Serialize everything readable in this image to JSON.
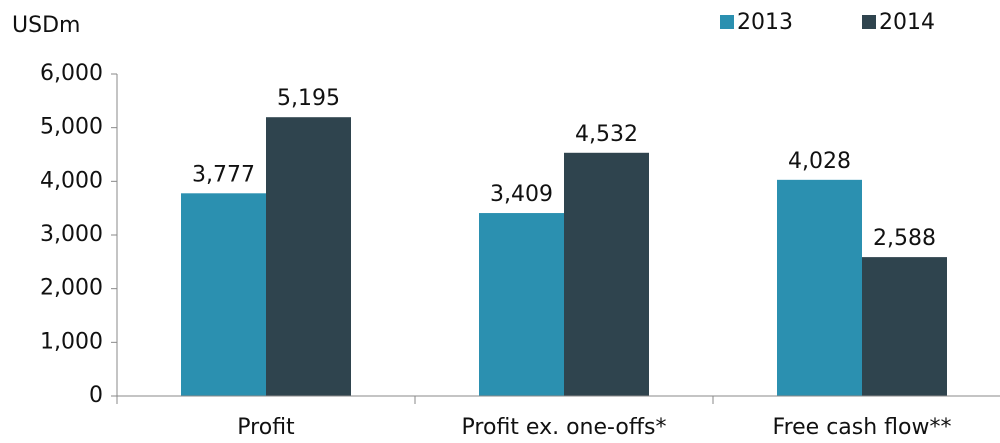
{
  "chart_data": {
    "type": "bar",
    "y_label": "USDm",
    "categories": [
      "Profit",
      "Profit ex. one-offs*",
      "Free cash flow**"
    ],
    "series": [
      {
        "name": "2013",
        "color": "#2b90b0",
        "values": [
          3777,
          3409,
          4028
        ],
        "value_labels": [
          "3,777",
          "3,409",
          "4,028"
        ]
      },
      {
        "name": "2014",
        "color": "#2f444e",
        "values": [
          5195,
          4532,
          2588
        ],
        "value_labels": [
          "5,195",
          "4,532",
          "2,588"
        ]
      }
    ],
    "ylim": [
      0,
      6000
    ],
    "yticks": [
      0,
      {
        "value": 1000,
        "label": "1,000"
      },
      {
        "value": 2000,
        "label": "2,000"
      },
      {
        "value": 3000,
        "label": "3,000"
      },
      {
        "value": 4000,
        "label": "4,000"
      },
      {
        "value": 5000,
        "label": "5,000"
      },
      {
        "value": 6000,
        "label": "6,000"
      }
    ],
    "legend": "top-right",
    "grid": false
  }
}
